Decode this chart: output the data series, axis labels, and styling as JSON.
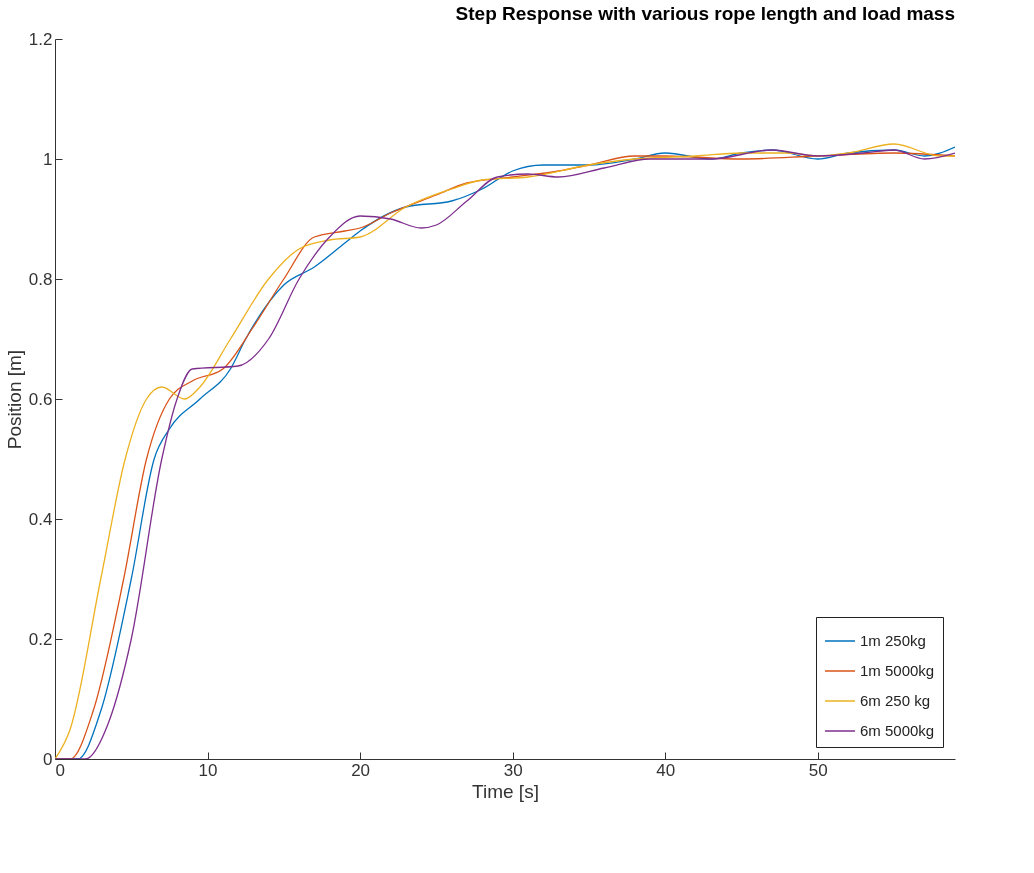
{
  "chart_data": {
    "type": "line",
    "title": "Step Response with various rope length and load mass",
    "xlabel": "Time [s]",
    "ylabel": "Position [m]",
    "xlim": [
      0,
      59
    ],
    "xticks": [
      0,
      10,
      20,
      30,
      40,
      50
    ],
    "ylim": [
      0,
      1.2
    ],
    "yticks": [
      0,
      0.2,
      0.4,
      0.6,
      0.8,
      1,
      1.2
    ],
    "grid": false,
    "legend": "bottom right",
    "series": [
      {
        "name": "1m 250kg",
        "color": "#0072bd",
        "x": [
          0,
          1.5,
          3,
          5,
          6.5,
          7.5,
          9.5,
          11.5,
          12.5,
          15,
          17,
          19,
          20,
          23,
          26,
          28,
          30,
          32,
          35,
          38,
          40,
          43,
          45,
          47,
          50,
          52,
          55,
          57,
          59
        ],
        "values": [
          0,
          0,
          0.08,
          0.3,
          0.5,
          0.55,
          0.6,
          0.65,
          0.7,
          0.79,
          0.82,
          0.86,
          0.88,
          0.92,
          0.93,
          0.95,
          0.98,
          0.99,
          0.99,
          1,
          1.01,
          1,
          1.01,
          1.015,
          1,
          1.01,
          1.015,
          1.005,
          1.02
        ]
      },
      {
        "name": "1m 5000kg",
        "color": "#d95319",
        "x": [
          0,
          1,
          2.5,
          4.5,
          6,
          7.5,
          9,
          11,
          13,
          15,
          17,
          19,
          20,
          22,
          25,
          27,
          30,
          33,
          35,
          38,
          40,
          45,
          50,
          55,
          59
        ],
        "values": [
          0,
          0,
          0.08,
          0.3,
          0.5,
          0.6,
          0.63,
          0.65,
          0.72,
          0.8,
          0.87,
          0.88,
          0.885,
          0.91,
          0.94,
          0.96,
          0.97,
          0.98,
          0.99,
          1.005,
          1.005,
          1,
          1.005,
          1.01,
          1.005
        ]
      },
      {
        "name": "6m 250 kg",
        "color": "#edb120",
        "x": [
          0,
          1,
          3,
          4.6,
          6,
          7,
          8.5,
          9.5,
          11.5,
          14,
          16,
          18,
          20,
          23,
          26,
          28,
          31,
          35,
          38,
          42,
          45,
          48,
          50,
          52,
          55,
          58,
          59
        ],
        "values": [
          0,
          0.05,
          0.3,
          0.5,
          0.6,
          0.62,
          0.6,
          0.62,
          0.7,
          0.8,
          0.85,
          0.865,
          0.87,
          0.92,
          0.95,
          0.965,
          0.97,
          0.99,
          1,
          1.005,
          1.01,
          1.01,
          1.005,
          1.01,
          1.025,
          1.005,
          1.005
        ]
      },
      {
        "name": "6m 5000kg",
        "color": "#7e2f8e",
        "x": [
          0,
          2,
          3.5,
          5,
          7,
          8,
          9,
          12,
          14,
          16,
          18,
          20,
          22,
          24,
          25,
          27,
          29,
          31,
          33,
          36,
          39,
          43,
          47,
          50,
          53,
          55,
          57,
          59
        ],
        "values": [
          0,
          0,
          0.06,
          0.2,
          0.5,
          0.6,
          0.65,
          0.655,
          0.7,
          0.8,
          0.87,
          0.905,
          0.9,
          0.885,
          0.89,
          0.93,
          0.97,
          0.975,
          0.97,
          0.985,
          1,
          1,
          1.015,
          1.005,
          1.01,
          1.015,
          1,
          1.01
        ]
      }
    ]
  }
}
